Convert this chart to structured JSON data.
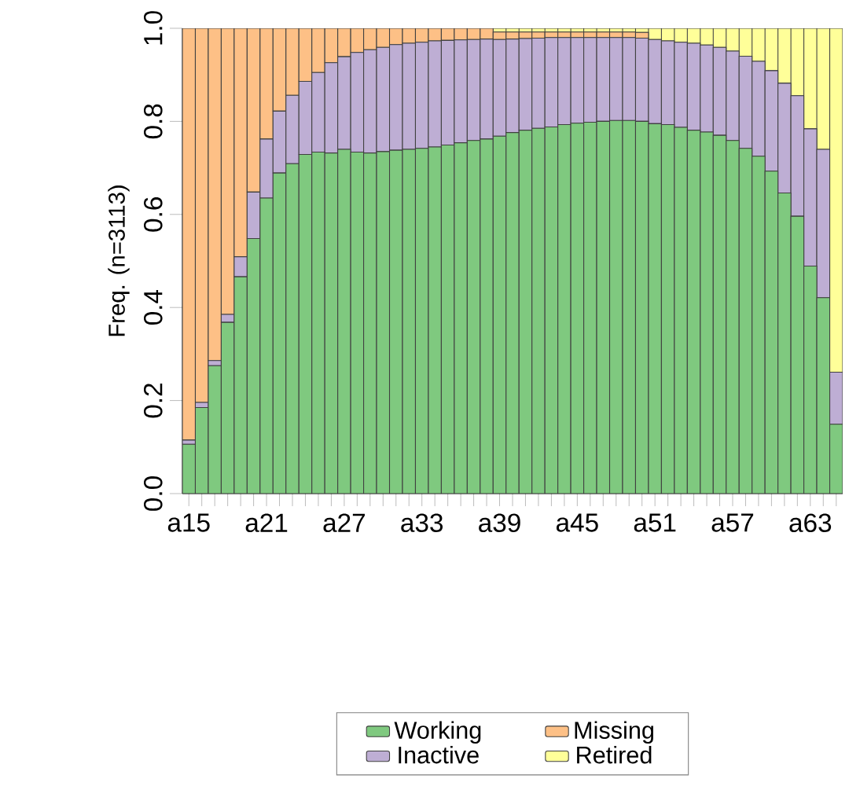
{
  "chart_data": {
    "type": "bar",
    "stacked": true,
    "ylabel": "Freq. (n=3113)",
    "categories": [
      "a15",
      null,
      null,
      null,
      null,
      null,
      "a21",
      null,
      null,
      null,
      null,
      null,
      "a27",
      null,
      null,
      null,
      null,
      null,
      "a33",
      null,
      null,
      null,
      null,
      null,
      "a39",
      null,
      null,
      null,
      null,
      null,
      "a45",
      null,
      null,
      null,
      null,
      null,
      "a51",
      null,
      null,
      null,
      null,
      null,
      "a57",
      null,
      null,
      null,
      null,
      null,
      "a63",
      null,
      null
    ],
    "ylim": [
      0,
      1
    ],
    "yticks": [
      {
        "value": 0,
        "label": "0.0"
      },
      0.2,
      0.4,
      0.6,
      0.8,
      {
        "value": 1,
        "label": "1.0"
      }
    ],
    "legend": "bottom",
    "series": [
      {
        "name": "Working",
        "color": "#7fc97f",
        "values": [
          0.106,
          0.185,
          0.275,
          0.368,
          0.466,
          0.548,
          0.635,
          0.689,
          0.709,
          0.729,
          0.734,
          0.732,
          0.74,
          0.734,
          0.732,
          0.735,
          0.738,
          0.74,
          0.742,
          0.745,
          0.749,
          0.754,
          0.759,
          0.762,
          0.768,
          0.776,
          0.781,
          0.785,
          0.788,
          0.793,
          0.796,
          0.798,
          0.8,
          0.802,
          0.802,
          0.8,
          0.795,
          0.793,
          0.787,
          0.781,
          0.777,
          0.77,
          0.759,
          0.742,
          0.725,
          0.693,
          0.646,
          0.596,
          0.489,
          0.421,
          0.149
        ]
      },
      {
        "name": "Inactive",
        "color": "#beaed4",
        "values": [
          0.009,
          0.011,
          0.011,
          0.017,
          0.043,
          0.1,
          0.127,
          0.133,
          0.147,
          0.157,
          0.171,
          0.194,
          0.199,
          0.214,
          0.222,
          0.224,
          0.227,
          0.228,
          0.228,
          0.228,
          0.225,
          0.221,
          0.217,
          0.215,
          0.208,
          0.201,
          0.197,
          0.194,
          0.192,
          0.187,
          0.184,
          0.182,
          0.18,
          0.178,
          0.178,
          0.179,
          0.181,
          0.18,
          0.183,
          0.187,
          0.187,
          0.189,
          0.192,
          0.198,
          0.204,
          0.216,
          0.236,
          0.259,
          0.295,
          0.319,
          0.112
        ]
      },
      {
        "name": "Missing",
        "color": "#fdc086",
        "values": [
          0.885,
          0.804,
          0.714,
          0.615,
          0.491,
          0.352,
          0.238,
          0.178,
          0.144,
          0.114,
          0.095,
          0.074,
          0.061,
          0.052,
          0.046,
          0.041,
          0.035,
          0.032,
          0.03,
          0.027,
          0.026,
          0.025,
          0.024,
          0.023,
          0.016,
          0.015,
          0.014,
          0.013,
          0.012,
          0.012,
          0.012,
          0.012,
          0.012,
          0.012,
          0.012,
          0.012,
          null,
          null,
          null,
          null,
          null,
          null,
          null,
          null,
          null,
          null,
          null,
          null,
          null,
          null,
          null
        ]
      },
      {
        "name": "Retired",
        "color": "#ffff99",
        "values": [
          0,
          0,
          0,
          0,
          0,
          0,
          0,
          0,
          0,
          0,
          0,
          0,
          0,
          0,
          0,
          0,
          0,
          0,
          0,
          0,
          0,
          0,
          0,
          0,
          0.008,
          0.008,
          0.008,
          0.008,
          0.008,
          0.008,
          0.008,
          0.008,
          0.008,
          0.008,
          0.008,
          0.009,
          0.024,
          0.027,
          0.03,
          0.032,
          0.036,
          0.041,
          0.049,
          0.06,
          0.071,
          0.091,
          0.118,
          0.145,
          0.216,
          0.26,
          0.739
        ]
      }
    ]
  }
}
